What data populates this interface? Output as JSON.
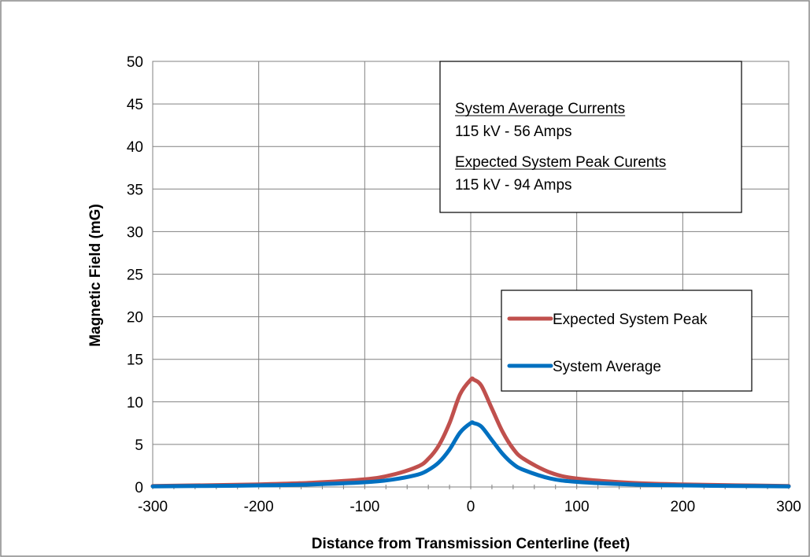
{
  "chart_data": {
    "type": "line",
    "title": "",
    "xlabel": "Distance from Transmission Centerline (feet)",
    "ylabel": "Magnetic Field (mG)",
    "xlim": [
      -300,
      300
    ],
    "ylim": [
      0,
      50
    ],
    "x_ticks": [
      -300,
      -200,
      -100,
      0,
      100,
      200,
      300
    ],
    "y_ticks": [
      0,
      5,
      10,
      15,
      20,
      25,
      30,
      35,
      40,
      45,
      50
    ],
    "x_tick_labels": [
      "-300",
      "-200",
      "-100",
      "0",
      "100",
      "200",
      "300"
    ],
    "y_tick_labels": [
      "0",
      "5",
      "10",
      "15",
      "20",
      "25",
      "30",
      "35",
      "40",
      "45",
      "50"
    ],
    "grid": true,
    "legend_position": "right",
    "annotation": {
      "heading1": "System Average Currents",
      "line1": "115 kV - 56 Amps",
      "heading2": "Expected System Peak Curents",
      "line2": "115 kV - 94 Amps"
    },
    "series": [
      {
        "name": "Expected System Peak",
        "color": "#C0504D",
        "x": [
          -300,
          -250,
          -200,
          -150,
          -100,
          -75,
          -50,
          -40,
          -30,
          -20,
          -10,
          0,
          3,
          10,
          20,
          30,
          40,
          50,
          75,
          100,
          150,
          200,
          250,
          300
        ],
        "y": [
          0.12,
          0.2,
          0.3,
          0.5,
          0.9,
          1.4,
          2.4,
          3.3,
          4.9,
          7.5,
          10.9,
          12.6,
          12.6,
          11.9,
          9.2,
          6.5,
          4.5,
          3.3,
          1.7,
          1.0,
          0.5,
          0.3,
          0.2,
          0.12
        ]
      },
      {
        "name": "System Average",
        "color": "#0070C0",
        "x": [
          -300,
          -250,
          -200,
          -150,
          -100,
          -75,
          -50,
          -40,
          -30,
          -20,
          -10,
          0,
          3,
          10,
          20,
          30,
          40,
          50,
          75,
          100,
          150,
          200,
          250,
          300
        ],
        "y": [
          0.07,
          0.12,
          0.18,
          0.3,
          0.55,
          0.85,
          1.45,
          2.0,
          2.9,
          4.4,
          6.4,
          7.5,
          7.5,
          7.1,
          5.5,
          3.9,
          2.7,
          2.0,
          1.0,
          0.6,
          0.3,
          0.18,
          0.12,
          0.07
        ]
      }
    ]
  }
}
